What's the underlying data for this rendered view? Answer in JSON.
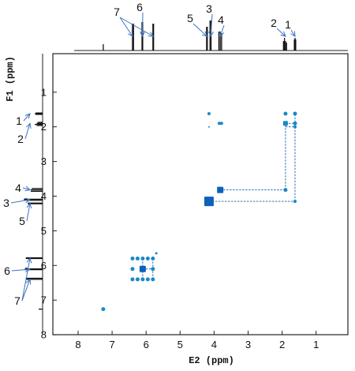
{
  "chart_data": {
    "type": "scatter",
    "subtype": "2D COSY NMR spectrum",
    "xlabel": "E2 (ppm)",
    "ylabel": "F1 (ppm)",
    "x_axis_reversed": true,
    "y_axis_reversed": true,
    "xlim": [
      8.5,
      0
    ],
    "ylim": [
      0.5,
      8
    ],
    "xticks": [
      "8",
      "7",
      "6",
      "5",
      "4",
      "3",
      "2",
      "1"
    ],
    "yticks": [
      "1",
      "2",
      "3",
      "4",
      "5",
      "6",
      "7",
      "8"
    ],
    "projection_peaks": [
      {
        "shift": 7.26,
        "height": 0.2
      },
      {
        "shift": 6.4,
        "height": 0.85
      },
      {
        "shift": 6.37,
        "height": 0.85
      },
      {
        "shift": 6.12,
        "height": 0.9
      },
      {
        "shift": 6.1,
        "height": 0.9
      },
      {
        "shift": 5.8,
        "height": 0.85
      },
      {
        "shift": 5.78,
        "height": 0.85
      },
      {
        "shift": 4.22,
        "height": 0.75
      },
      {
        "shift": 4.2,
        "height": 0.75
      },
      {
        "shift": 4.12,
        "height": 0.95
      },
      {
        "shift": 4.09,
        "height": 0.95
      },
      {
        "shift": 3.86,
        "height": 0.6
      },
      {
        "shift": 3.82,
        "height": 0.6
      },
      {
        "shift": 3.78,
        "height": 0.55
      },
      {
        "shift": 1.96,
        "height": 0.3
      },
      {
        "shift": 1.93,
        "height": 0.4
      },
      {
        "shift": 1.9,
        "height": 0.3
      },
      {
        "shift": 1.87,
        "height": 0.25
      },
      {
        "shift": 1.64,
        "height": 0.35
      },
      {
        "shift": 1.62,
        "height": 0.4
      },
      {
        "shift": 1.6,
        "height": 0.35
      }
    ],
    "peak_labels": [
      {
        "label": "1",
        "shift": 1.62
      },
      {
        "label": "2",
        "shift": 1.9
      },
      {
        "label": "3",
        "shift": 4.1
      },
      {
        "label": "4",
        "shift": 3.82
      },
      {
        "label": "5",
        "shift": 4.21
      },
      {
        "label": "6",
        "shift": 6.11
      },
      {
        "label": "7",
        "shift": 6.4
      },
      {
        "label": "7",
        "shift": 5.79
      }
    ],
    "cross_peaks": [
      {
        "x": 7.26,
        "y": 7.26,
        "size": 2.5
      },
      {
        "x": 6.4,
        "y": 5.8,
        "size": 2.5
      },
      {
        "x": 6.25,
        "y": 5.8,
        "size": 2.5
      },
      {
        "x": 6.1,
        "y": 5.8,
        "size": 2.5
      },
      {
        "x": 5.95,
        "y": 5.8,
        "size": 2.5
      },
      {
        "x": 5.8,
        "y": 5.8,
        "size": 2.5
      },
      {
        "x": 6.4,
        "y": 6.1,
        "size": 2.5
      },
      {
        "x": 6.1,
        "y": 6.1,
        "size": 4
      },
      {
        "x": 5.8,
        "y": 6.1,
        "size": 2.5
      },
      {
        "x": 6.4,
        "y": 6.4,
        "size": 2.5
      },
      {
        "x": 6.25,
        "y": 6.4,
        "size": 2.5
      },
      {
        "x": 6.1,
        "y": 6.4,
        "size": 2.5
      },
      {
        "x": 5.95,
        "y": 6.4,
        "size": 2.5
      },
      {
        "x": 5.8,
        "y": 6.4,
        "size": 2.5
      },
      {
        "x": 5.7,
        "y": 5.65,
        "size": 1.5
      },
      {
        "x": 4.15,
        "y": 4.15,
        "size": 6
      },
      {
        "x": 3.82,
        "y": 3.82,
        "size": 4
      },
      {
        "x": 4.15,
        "y": 1.62,
        "size": 2
      },
      {
        "x": 4.15,
        "y": 2.0,
        "size": 1
      },
      {
        "x": 3.85,
        "y": 1.9,
        "size": 2
      },
      {
        "x": 3.78,
        "y": 1.9,
        "size": 2
      },
      {
        "x": 1.9,
        "y": 1.62,
        "size": 2.5
      },
      {
        "x": 1.62,
        "y": 1.62,
        "size": 2.5
      },
      {
        "x": 1.9,
        "y": 1.9,
        "size": 3
      },
      {
        "x": 1.62,
        "y": 1.9,
        "size": 2.5
      },
      {
        "x": 1.9,
        "y": 3.82,
        "size": 2.5
      },
      {
        "x": 1.62,
        "y": 4.15,
        "size": 2
      },
      {
        "x": 1.62,
        "y": 2.0,
        "size": 2
      }
    ],
    "connectors": [
      {
        "x1": 4.15,
        "y1": 4.15,
        "x2": 1.62,
        "y2": 4.15
      },
      {
        "x1": 3.82,
        "y1": 3.82,
        "x2": 1.9,
        "y2": 3.82
      },
      {
        "x1": 1.9,
        "y1": 3.82,
        "x2": 1.9,
        "y2": 1.9
      },
      {
        "x1": 1.62,
        "y1": 4.15,
        "x2": 1.62,
        "y2": 1.62
      },
      {
        "x1": 1.9,
        "y1": 1.9,
        "x2": 1.62,
        "y2": 1.9
      },
      {
        "x1": 1.9,
        "y1": 2.0,
        "x2": 1.62,
        "y2": 2.0
      },
      {
        "x1": 6.1,
        "y1": 6.1,
        "x2": 5.8,
        "y2": 6.1
      },
      {
        "x1": 6.1,
        "y1": 6.4,
        "x2": 6.1,
        "y2": 5.8
      },
      {
        "x1": 5.8,
        "y1": 6.4,
        "x2": 5.8,
        "y2": 5.8
      }
    ],
    "grid": false,
    "colors": {
      "cross_peak": "#1a88c9",
      "cross_peak_strong": "#0c62b8",
      "spectrum": "#111111",
      "arrow": "#3b74bf"
    }
  }
}
